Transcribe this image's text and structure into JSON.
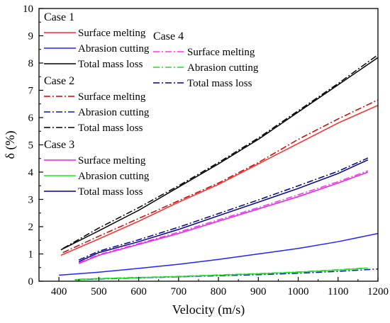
{
  "chart_data": {
    "type": "line",
    "xlabel": "Velocity (m/s)",
    "ylabel": "δ (%)",
    "xlim": [
      350,
      1200
    ],
    "ylim": [
      0,
      10
    ],
    "xticks": [
      400,
      500,
      600,
      700,
      800,
      900,
      1000,
      1100,
      1200
    ],
    "yticks": [
      0,
      1,
      2,
      3,
      4,
      5,
      6,
      7,
      8,
      9,
      10
    ],
    "grid": false,
    "legend_placement": "top-left",
    "groups": [
      {
        "name": "Case 1",
        "column": 1,
        "series": [
          {
            "name": "Surface melting",
            "color": "#ff2a2a",
            "dash": "solid",
            "x": [
              405,
              500,
              600,
              700,
              800,
              900,
              1000,
              1100,
              1200
            ],
            "y": [
              0.95,
              1.55,
              2.2,
              2.9,
              3.55,
              4.3,
              5.05,
              5.8,
              6.45
            ]
          },
          {
            "name": "Abrasion cutting",
            "color": "#1f24ff",
            "dash": "solid",
            "x": [
              400,
              500,
              600,
              700,
              800,
              900,
              1000,
              1100,
              1200
            ],
            "y": [
              0.22,
              0.33,
              0.47,
              0.62,
              0.8,
              1.0,
              1.2,
              1.45,
              1.75
            ]
          },
          {
            "name": "Total mass loss",
            "color": "#000000",
            "dash": "solid",
            "x": [
              405,
              500,
              600,
              700,
              800,
              900,
              1000,
              1100,
              1200
            ],
            "y": [
              1.15,
              1.85,
              2.6,
              3.45,
              4.3,
              5.2,
              6.2,
              7.2,
              8.2
            ]
          }
        ]
      },
      {
        "name": "Case 2",
        "column": 1,
        "series": [
          {
            "name": "Surface melting",
            "color": "#d40000",
            "dash": "dashdot",
            "x": [
              410,
              500,
              600,
              700,
              800,
              900,
              1000,
              1100,
              1200
            ],
            "y": [
              1.05,
              1.65,
              2.3,
              2.95,
              3.6,
              4.35,
              5.2,
              5.95,
              6.65
            ]
          },
          {
            "name": "Abrasion cutting",
            "color": "#0018c8",
            "dash": "dashdot",
            "x": [
              440,
              500,
              600,
              700,
              800,
              900,
              1000,
              1100,
              1200
            ],
            "y": [
              0.05,
              0.08,
              0.12,
              0.16,
              0.2,
              0.24,
              0.29,
              0.36,
              0.45
            ]
          },
          {
            "name": "Total mass loss",
            "color": "#000000",
            "dash": "dashdot",
            "x": [
              410,
              500,
              600,
              700,
              800,
              900,
              1000,
              1100,
              1200
            ],
            "y": [
              1.2,
              1.95,
              2.7,
              3.5,
              4.35,
              5.25,
              6.25,
              7.25,
              8.3
            ]
          }
        ]
      },
      {
        "name": "Case 3",
        "column": 1,
        "series": [
          {
            "name": "Surface melting",
            "color": "#e81de8",
            "dash": "solid",
            "x": [
              450,
              500,
              600,
              700,
              800,
              900,
              1000,
              1100,
              1175
            ],
            "y": [
              0.65,
              0.95,
              1.35,
              1.75,
              2.2,
              2.65,
              3.1,
              3.6,
              4.0
            ]
          },
          {
            "name": "Abrasion cutting",
            "color": "#22e622",
            "dash": "solid",
            "x": [
              440,
              500,
              600,
              700,
              800,
              900,
              1000,
              1100,
              1175
            ],
            "y": [
              0.06,
              0.09,
              0.13,
              0.17,
              0.22,
              0.27,
              0.33,
              0.41,
              0.48
            ]
          },
          {
            "name": "Total mass loss",
            "color": "#00008b",
            "dash": "solid",
            "x": [
              450,
              500,
              600,
              700,
              800,
              900,
              1000,
              1100,
              1175
            ],
            "y": [
              0.72,
              1.05,
              1.45,
              1.9,
              2.4,
              2.9,
              3.4,
              3.95,
              4.45
            ]
          }
        ]
      },
      {
        "name": "Case 4",
        "column": 2,
        "series": [
          {
            "name": "Surface melting",
            "color": "#ff30ff",
            "dash": "dashdot",
            "x": [
              450,
              500,
              600,
              700,
              800,
              900,
              1000,
              1100,
              1175
            ],
            "y": [
              0.68,
              0.98,
              1.38,
              1.8,
              2.25,
              2.7,
              3.17,
              3.65,
              4.05
            ]
          },
          {
            "name": "Abrasion cutting",
            "color": "#22dd22",
            "dash": "dashdot",
            "x": [
              450,
              500,
              600,
              700,
              800,
              900,
              1000,
              1100,
              1175
            ],
            "y": [
              0.07,
              0.1,
              0.14,
              0.18,
              0.23,
              0.28,
              0.34,
              0.42,
              0.49
            ]
          },
          {
            "name": "Total mass loss",
            "color": "#000088",
            "dash": "dashdot",
            "x": [
              450,
              500,
              600,
              700,
              800,
              900,
              1000,
              1100,
              1175
            ],
            "y": [
              0.78,
              1.1,
              1.52,
              1.98,
              2.48,
              2.98,
              3.5,
              4.03,
              4.52
            ]
          }
        ]
      }
    ]
  }
}
